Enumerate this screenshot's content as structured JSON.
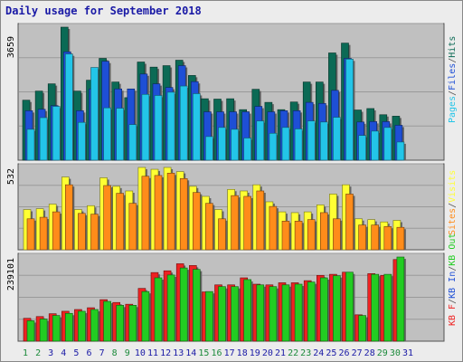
{
  "title": "Daily usage for September 2018",
  "colors": {
    "files_top": "#1b6b5b",
    "pages": "#23c5e8",
    "hits_dark": "#0b6a55",
    "files": "#1e4fd6",
    "visits": "#ffff33",
    "sites": "#ff8c1a",
    "kbin": "#22cc22",
    "kbout": "#ee2222",
    "weekend": "#1b8a3a",
    "weekday": "#1a1aa6"
  },
  "chart_data": [
    {
      "type": "bar",
      "title": "Daily usage for September 2018",
      "categories": [
        "1",
        "2",
        "3",
        "4",
        "5",
        "6",
        "7",
        "8",
        "9",
        "10",
        "11",
        "12",
        "13",
        "14",
        "15",
        "16",
        "17",
        "18",
        "19",
        "20",
        "21",
        "22",
        "23",
        "24",
        "25",
        "26",
        "27",
        "28",
        "29",
        "30",
        "31"
      ],
      "max_label": "3659",
      "ylim": [
        0,
        3659
      ],
      "side_labels": [
        "Pages",
        "/",
        "Files",
        "/",
        "Hits"
      ],
      "series": [
        {
          "name": "Hits",
          "values": [
            1650,
            1900,
            2100,
            3659,
            1900,
            2200,
            2800,
            2150,
            1720,
            2700,
            2560,
            2600,
            2750,
            2330,
            1690,
            1680,
            1690,
            1390,
            1950,
            1590,
            1390,
            1600,
            2150,
            2150,
            2950,
            3220,
            1380,
            1420,
            1250,
            1210,
            0
          ]
        },
        {
          "name": "Files",
          "values": [
            1360,
            1400,
            1500,
            2980,
            1360,
            1960,
            2720,
            1960,
            1960,
            2370,
            2100,
            2000,
            2600,
            2160,
            1330,
            1330,
            1330,
            1330,
            1480,
            1330,
            1360,
            1360,
            1590,
            1560,
            1920,
            2800,
            1050,
            1060,
            1060,
            960,
            0
          ]
        },
        {
          "name": "Pages",
          "values": [
            850,
            1170,
            1480,
            2920,
            1040,
            2550,
            1440,
            1430,
            980,
            1810,
            1780,
            1870,
            2040,
            1830,
            650,
            900,
            850,
            610,
            1080,
            740,
            900,
            860,
            1080,
            1050,
            1180,
            2780,
            680,
            800,
            900,
            500,
            0
          ]
        }
      ]
    },
    {
      "type": "bar",
      "categories": [
        "1",
        "2",
        "3",
        "4",
        "5",
        "6",
        "7",
        "8",
        "9",
        "10",
        "11",
        "12",
        "13",
        "14",
        "15",
        "16",
        "17",
        "18",
        "19",
        "20",
        "21",
        "22",
        "23",
        "24",
        "25",
        "26",
        "27",
        "28",
        "29",
        "30",
        "31"
      ],
      "max_label": "532",
      "ylim": [
        0,
        532
      ],
      "side_labels": [
        "Sites",
        "/",
        "Visits"
      ],
      "series": [
        {
          "name": "Visits",
          "values": [
            260,
            265,
            295,
            470,
            260,
            285,
            465,
            410,
            380,
            532,
            520,
            532,
            505,
            410,
            345,
            260,
            390,
            380,
            420,
            310,
            245,
            240,
            245,
            290,
            360,
            420,
            200,
            195,
            180,
            190,
            0
          ]
        },
        {
          "name": "Sites",
          "values": [
            200,
            210,
            245,
            420,
            235,
            230,
            415,
            365,
            300,
            475,
            480,
            495,
            460,
            370,
            300,
            200,
            350,
            345,
            380,
            280,
            185,
            185,
            195,
            240,
            200,
            360,
            160,
            160,
            150,
            145,
            0
          ]
        }
      ]
    },
    {
      "type": "bar",
      "categories": [
        "1",
        "2",
        "3",
        "4",
        "5",
        "6",
        "7",
        "8",
        "9",
        "10",
        "11",
        "12",
        "13",
        "14",
        "15",
        "16",
        "17",
        "18",
        "19",
        "20",
        "21",
        "22",
        "23",
        "24",
        "25",
        "26",
        "27",
        "28",
        "29",
        "30",
        "31"
      ],
      "max_label": "239101",
      "ylim": [
        0,
        239101
      ],
      "side_labels": [
        "KB F",
        "/",
        "KB In",
        "/",
        "KB Out"
      ],
      "series": [
        {
          "name": "KB F",
          "values": [
            65000,
            70000,
            78000,
            85000,
            90000,
            95000,
            118000,
            110000,
            105000,
            150000,
            195000,
            200000,
            220000,
            215000,
            140000,
            160000,
            160000,
            180000,
            162000,
            160000,
            166000,
            166000,
            172000,
            187000,
            190000,
            196000,
            75000,
            192000,
            187000,
            232000,
            0
          ]
        },
        {
          "name": "KB In",
          "values": [
            58000,
            63000,
            73000,
            79000,
            85000,
            90000,
            113000,
            102000,
            102000,
            141000,
            180000,
            188000,
            208000,
            204000,
            141000,
            155000,
            155000,
            175000,
            160000,
            155000,
            160000,
            162000,
            168000,
            180000,
            186000,
            196000,
            73000,
            190000,
            190000,
            239101,
            0
          ]
        }
      ]
    }
  ]
}
